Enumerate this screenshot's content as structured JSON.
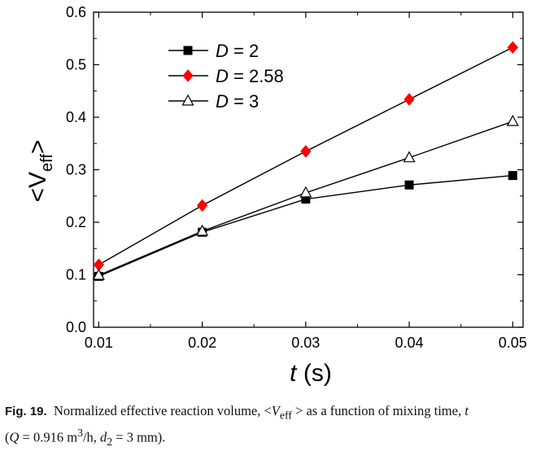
{
  "chart_data": {
    "type": "line",
    "x": [
      0.01,
      0.02,
      0.03,
      0.04,
      0.05
    ],
    "x_ticks": [
      "0.01",
      "0.02",
      "0.03",
      "0.04",
      "0.05"
    ],
    "y_ticks": [
      "0.0",
      "0.1",
      "0.2",
      "0.3",
      "0.4",
      "0.5",
      "0.6"
    ],
    "xlim": [
      0.0095,
      0.051
    ],
    "ylim": [
      0.0,
      0.6
    ],
    "xlabel": {
      "italic": "t",
      "rest": " (s)"
    },
    "ylabel": {
      "prefix": "<V",
      "sub": "eff",
      "suffix": ">"
    },
    "legend_position": "top-left",
    "series": [
      {
        "name": "D = 2",
        "name_italic": "D",
        "name_rest": " = 2",
        "marker": "square",
        "color": "#000000",
        "fill": "#000000",
        "values": [
          0.097,
          0.181,
          0.244,
          0.271,
          0.289
        ]
      },
      {
        "name": "D = 2.58",
        "name_italic": "D",
        "name_rest": " = 2.58",
        "marker": "diamond",
        "color": "#000000",
        "fill": "#ff0000",
        "values": [
          0.119,
          0.232,
          0.335,
          0.434,
          0.533
        ]
      },
      {
        "name": "D = 3",
        "name_italic": "D",
        "name_rest": " = 3",
        "marker": "triangle",
        "color": "#000000",
        "fill": "#ffffff",
        "values": [
          0.099,
          0.183,
          0.256,
          0.323,
          0.392
        ]
      }
    ]
  },
  "caption": {
    "label": "Fig. 19.",
    "text_1": "Normalized effective reaction volume, <",
    "v": "V",
    "eff": "eff",
    "text_2": " > as a function of mixing time, ",
    "t": "t",
    "line2_open": "(",
    "q": "Q",
    "q_value": " = 0.916 m",
    "cube": "3",
    "q_unit": "/h, ",
    "d": "d",
    "d_sub": "2",
    "d_value": " = 3 mm)."
  }
}
